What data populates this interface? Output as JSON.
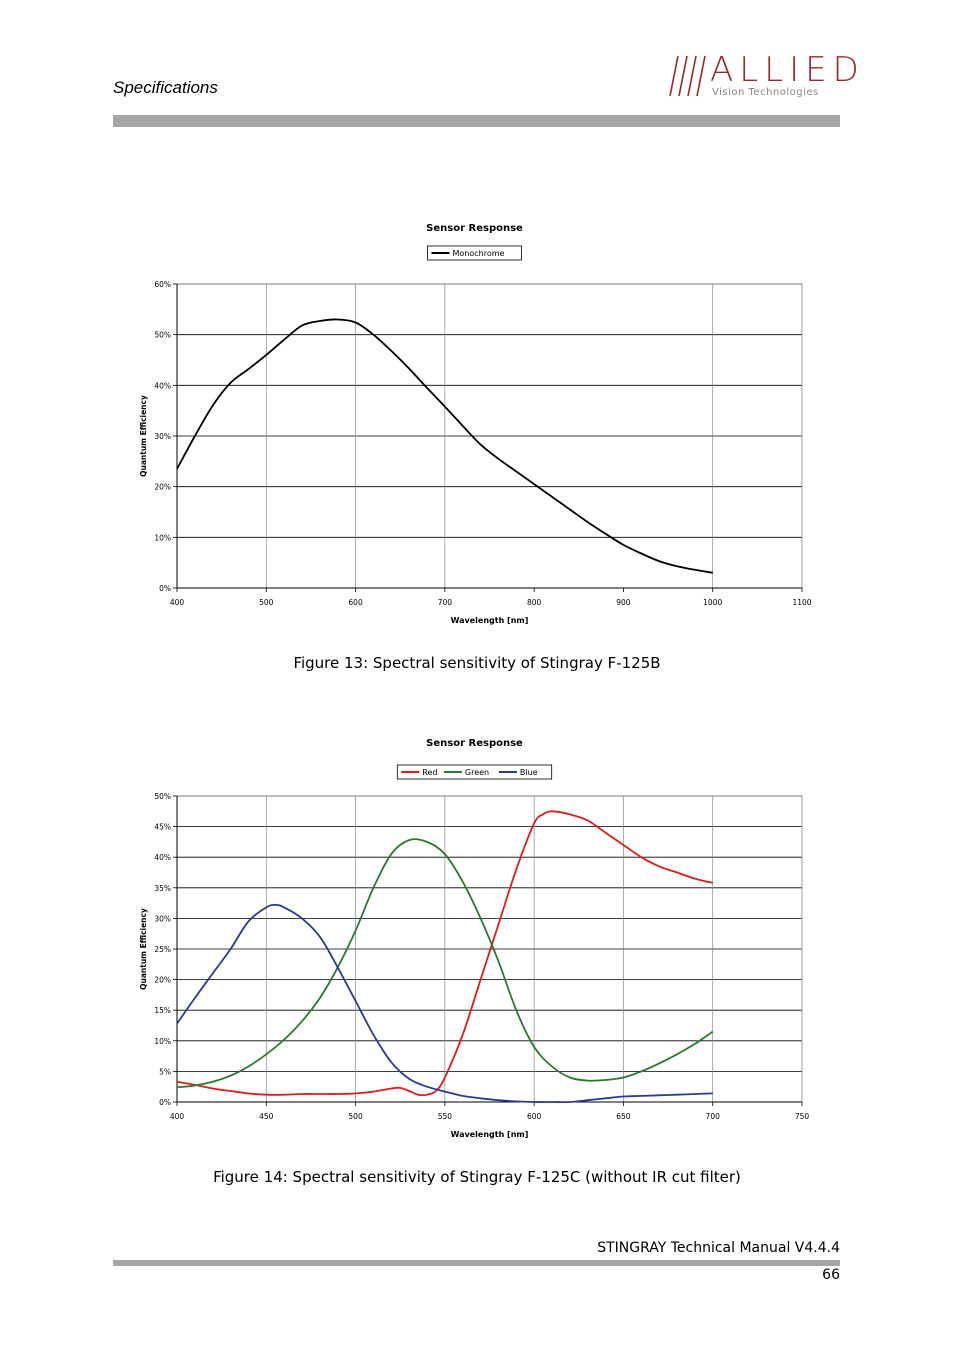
{
  "header": {
    "section_title": "Specifications",
    "logo_brand": "ALLIED",
    "logo_subtitle": "Vision Technologies"
  },
  "figures": [
    {
      "caption": "Figure 13: Spectral sensitivity of Stingray F-125B"
    },
    {
      "caption": "Figure 14: Spectral sensitivity of Stingray F-125C (without IR cut filter)"
    }
  ],
  "footer": {
    "manual": "STINGRAY Technical Manual V4.4.4",
    "page": "66"
  },
  "chart_data": [
    {
      "type": "line",
      "title": "Sensor Response",
      "xlabel": "Wavelength [nm]",
      "ylabel": "Quantum Efficiency",
      "xlim": [
        400,
        1100
      ],
      "ylim": [
        0,
        0.6
      ],
      "x_ticks": [
        400,
        500,
        600,
        700,
        800,
        900,
        1000,
        1100
      ],
      "x_tick_labels": [
        "400",
        "500",
        "600",
        "700",
        "800",
        "900",
        "1000",
        "1100"
      ],
      "y_ticks": [
        0,
        0.1,
        0.2,
        0.3,
        0.4,
        0.5,
        0.6
      ],
      "y_tick_labels": [
        "0%",
        "10%",
        "20%",
        "30%",
        "40%",
        "50%",
        "60%"
      ],
      "horizontal_grid": true,
      "vertical_grid": [
        500,
        600,
        700,
        1000
      ],
      "legend_position": "top-center",
      "series": [
        {
          "name": "Monochrome",
          "color": "#000000",
          "x": [
            400,
            420,
            440,
            460,
            480,
            500,
            520,
            540,
            560,
            580,
            600,
            620,
            640,
            660,
            680,
            700,
            720,
            740,
            760,
            780,
            800,
            820,
            840,
            860,
            880,
            900,
            920,
            940,
            960,
            980,
            1000
          ],
          "y": [
            0.235,
            0.3,
            0.36,
            0.405,
            0.432,
            0.46,
            0.49,
            0.518,
            0.527,
            0.53,
            0.524,
            0.5,
            0.468,
            0.433,
            0.395,
            0.358,
            0.32,
            0.283,
            0.255,
            0.23,
            0.205,
            0.18,
            0.155,
            0.13,
            0.107,
            0.085,
            0.068,
            0.053,
            0.043,
            0.036,
            0.03
          ]
        }
      ]
    },
    {
      "type": "line",
      "title": "Sensor Response",
      "xlabel": "Wavelength [nm]",
      "ylabel": "Quantum Efficiency",
      "xlim": [
        400,
        750
      ],
      "ylim": [
        0,
        0.5
      ],
      "x_ticks": [
        400,
        450,
        500,
        550,
        600,
        650,
        700,
        750
      ],
      "x_tick_labels": [
        "400",
        "450",
        "500",
        "550",
        "600",
        "650",
        "700",
        "750"
      ],
      "y_ticks": [
        0,
        0.05,
        0.1,
        0.15,
        0.2,
        0.25,
        0.3,
        0.35,
        0.4,
        0.45,
        0.5
      ],
      "y_tick_labels": [
        "0%",
        "5%",
        "10%",
        "15%",
        "20%",
        "25%",
        "30%",
        "35%",
        "40%",
        "45%",
        "50%"
      ],
      "horizontal_grid": true,
      "vertical_grid": [
        450,
        500,
        550,
        600,
        650,
        700
      ],
      "legend_position": "top-center",
      "series": [
        {
          "name": "Red",
          "color": "#e31a1c",
          "x": [
            400,
            410,
            420,
            430,
            440,
            450,
            460,
            470,
            480,
            490,
            500,
            510,
            520,
            525,
            530,
            535,
            540,
            545,
            550,
            560,
            570,
            580,
            590,
            600,
            605,
            610,
            620,
            630,
            640,
            650,
            660,
            670,
            680,
            690,
            700
          ],
          "y": [
            0.033,
            0.028,
            0.022,
            0.018,
            0.014,
            0.012,
            0.012,
            0.013,
            0.013,
            0.013,
            0.014,
            0.017,
            0.022,
            0.023,
            0.018,
            0.012,
            0.012,
            0.018,
            0.04,
            0.11,
            0.2,
            0.29,
            0.38,
            0.455,
            0.47,
            0.475,
            0.47,
            0.46,
            0.44,
            0.42,
            0.4,
            0.385,
            0.375,
            0.365,
            0.358
          ]
        },
        {
          "name": "Green",
          "color": "#2a7a2a",
          "x": [
            400,
            410,
            420,
            430,
            440,
            450,
            460,
            470,
            480,
            490,
            500,
            510,
            520,
            530,
            540,
            550,
            560,
            570,
            580,
            590,
            600,
            610,
            620,
            630,
            640,
            650,
            660,
            670,
            680,
            690,
            700
          ],
          "y": [
            0.024,
            0.027,
            0.033,
            0.043,
            0.058,
            0.078,
            0.102,
            0.132,
            0.17,
            0.22,
            0.28,
            0.35,
            0.405,
            0.428,
            0.425,
            0.405,
            0.36,
            0.3,
            0.23,
            0.15,
            0.09,
            0.058,
            0.04,
            0.035,
            0.036,
            0.04,
            0.05,
            0.063,
            0.078,
            0.095,
            0.115
          ]
        },
        {
          "name": "Blue",
          "color": "#2a3a9a",
          "x": [
            400,
            410,
            420,
            430,
            440,
            450,
            455,
            460,
            470,
            480,
            490,
            500,
            510,
            520,
            530,
            540,
            550,
            560,
            570,
            580,
            590,
            600,
            610,
            620,
            630,
            640,
            650,
            660,
            670,
            680,
            690,
            700
          ],
          "y": [
            0.128,
            0.17,
            0.21,
            0.25,
            0.295,
            0.318,
            0.322,
            0.318,
            0.3,
            0.27,
            0.22,
            0.165,
            0.11,
            0.065,
            0.038,
            0.025,
            0.017,
            0.01,
            0.006,
            0.003,
            0.001,
            0.0,
            0.0,
            0.0,
            0.003,
            0.006,
            0.009,
            0.01,
            0.011,
            0.012,
            0.013,
            0.014
          ]
        }
      ]
    }
  ]
}
